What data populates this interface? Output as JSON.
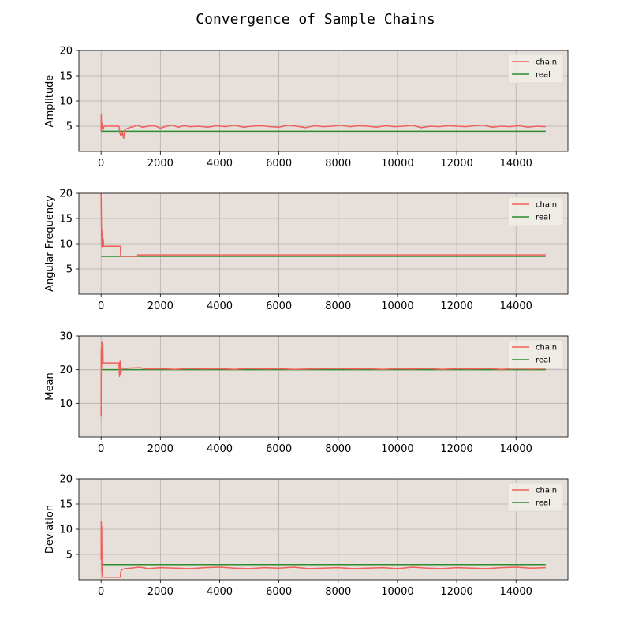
{
  "figure": {
    "title": "Convergence of Sample Chains",
    "background": "#ffffff",
    "axes_background": "#e7e0da",
    "grid_color": "#b0b0b0",
    "chain_color": "#f0605a",
    "real_color": "#2e8b2e"
  },
  "chart_data": [
    {
      "type": "line",
      "title": "",
      "xlabel": "",
      "ylabel": "Amplitude",
      "xlim": [
        -750,
        15750
      ],
      "ylim": [
        0,
        20
      ],
      "xticks": [
        0,
        2000,
        4000,
        6000,
        8000,
        10000,
        12000,
        14000
      ],
      "yticks": [
        5,
        10,
        15,
        20
      ],
      "grid": true,
      "legend": "top-right",
      "series": [
        {
          "name": "chain",
          "x": [
            0,
            5,
            10,
            20,
            30,
            60,
            100,
            600,
            640,
            680,
            720,
            760,
            800,
            900,
            1000,
            1100,
            1200,
            1400,
            1600,
            1800,
            2000,
            2200,
            2400,
            2600,
            2800,
            3000,
            3300,
            3600,
            3900,
            4200,
            4500,
            4800,
            5100,
            5400,
            5700,
            6000,
            6300,
            6600,
            6900,
            7200,
            7500,
            7800,
            8100,
            8400,
            8700,
            9000,
            9300,
            9600,
            9900,
            10200,
            10500,
            10800,
            11100,
            11400,
            11700,
            12000,
            12300,
            12600,
            12900,
            13200,
            13500,
            13800,
            14100,
            14400,
            14700,
            15000
          ],
          "values": [
            4.0,
            7.3,
            6.0,
            4.5,
            5.5,
            4.2,
            5.0,
            5.0,
            3.5,
            3.0,
            3.8,
            2.6,
            4.3,
            4.6,
            4.8,
            4.9,
            5.2,
            4.8,
            5.0,
            5.1,
            4.6,
            5.0,
            5.2,
            4.8,
            5.1,
            4.9,
            5.0,
            4.8,
            5.1,
            4.9,
            5.2,
            4.8,
            5.0,
            5.1,
            4.9,
            4.8,
            5.2,
            5.0,
            4.7,
            5.1,
            4.9,
            5.0,
            5.2,
            4.9,
            5.1,
            5.0,
            4.8,
            5.1,
            4.9,
            5.0,
            5.2,
            4.7,
            5.0,
            4.9,
            5.1,
            5.0,
            4.9,
            5.1,
            5.2,
            4.8,
            5.0,
            4.9,
            5.1,
            4.8,
            5.0,
            4.9
          ]
        },
        {
          "name": "real",
          "x": [
            0,
            15000
          ],
          "values": [
            4.0,
            4.0
          ]
        }
      ]
    },
    {
      "type": "line",
      "title": "",
      "xlabel": "",
      "ylabel": "Angular Frequency",
      "xlim": [
        -750,
        15750
      ],
      "ylim": [
        0,
        20
      ],
      "xticks": [
        0,
        2000,
        4000,
        6000,
        8000,
        10000,
        12000,
        14000
      ],
      "yticks": [
        5,
        10,
        15,
        20
      ],
      "grid": true,
      "legend": "top-right",
      "series": [
        {
          "name": "chain",
          "x": [
            0,
            5,
            15,
            25,
            40,
            55,
            70,
            90,
            100,
            650,
            660,
            1230,
            1240,
            15000
          ],
          "values": [
            20.0,
            17.0,
            12.0,
            9.5,
            12.5,
            9.2,
            11.0,
            9.5,
            9.5,
            9.5,
            7.5,
            7.5,
            7.8,
            7.8
          ]
        },
        {
          "name": "real",
          "x": [
            0,
            15000
          ],
          "values": [
            7.5,
            7.5
          ]
        }
      ]
    },
    {
      "type": "line",
      "title": "",
      "xlabel": "",
      "ylabel": "Mean",
      "xlim": [
        -750,
        15750
      ],
      "ylim": [
        0,
        30
      ],
      "xticks": [
        0,
        2000,
        4000,
        6000,
        8000,
        10000,
        12000,
        14000
      ],
      "yticks": [
        10,
        20,
        30
      ],
      "grid": true,
      "legend": "top-right",
      "series": [
        {
          "name": "chain",
          "x": [
            0,
            5,
            15,
            25,
            40,
            55,
            70,
            90,
            110,
            600,
            620,
            640,
            660,
            700,
            800,
            1000,
            1300,
            1600,
            2000,
            2500,
            3000,
            3500,
            4000,
            4500,
            5000,
            5500,
            6000,
            6500,
            7000,
            7500,
            8000,
            8500,
            9000,
            9500,
            10000,
            10500,
            11000,
            11500,
            12000,
            12500,
            13000,
            13500,
            14000,
            14500,
            15000
          ],
          "values": [
            6.0,
            26.0,
            20.0,
            28.0,
            22.0,
            28.5,
            22.0,
            22.0,
            22.0,
            22.0,
            18.0,
            22.5,
            18.5,
            20.5,
            20.4,
            20.5,
            20.6,
            20.2,
            20.3,
            20.1,
            20.4,
            20.2,
            20.3,
            20.1,
            20.4,
            20.2,
            20.3,
            20.1,
            20.2,
            20.3,
            20.4,
            20.2,
            20.3,
            20.1,
            20.3,
            20.2,
            20.4,
            20.1,
            20.3,
            20.2,
            20.4,
            20.1,
            20.3,
            20.2,
            20.3
          ]
        },
        {
          "name": "real",
          "x": [
            0,
            15000
          ],
          "values": [
            20.0,
            20.0
          ]
        }
      ]
    },
    {
      "type": "line",
      "title": "",
      "xlabel": "",
      "ylabel": "Deviation",
      "xlim": [
        -750,
        15750
      ],
      "ylim": [
        0,
        20
      ],
      "xticks": [
        0,
        2000,
        4000,
        6000,
        8000,
        10000,
        12000,
        14000
      ],
      "yticks": [
        5,
        10,
        15,
        20
      ],
      "grid": true,
      "legend": "top-right",
      "series": [
        {
          "name": "chain",
          "x": [
            0,
            5,
            10,
            20,
            30,
            50,
            100,
            650,
            660,
            700,
            800,
            1000,
            1300,
            1600,
            2000,
            2500,
            3000,
            3500,
            4000,
            4500,
            5000,
            5500,
            6000,
            6500,
            7000,
            7500,
            8000,
            8500,
            9000,
            9500,
            10000,
            10500,
            11000,
            11500,
            12000,
            12500,
            13000,
            13500,
            14000,
            14500,
            15000
          ],
          "values": [
            4.0,
            11.5,
            8.0,
            10.5,
            2.0,
            0.5,
            0.5,
            0.5,
            1.5,
            2.0,
            2.2,
            2.3,
            2.5,
            2.2,
            2.4,
            2.3,
            2.2,
            2.4,
            2.5,
            2.3,
            2.2,
            2.4,
            2.3,
            2.5,
            2.2,
            2.3,
            2.4,
            2.2,
            2.3,
            2.4,
            2.2,
            2.5,
            2.3,
            2.2,
            2.4,
            2.3,
            2.2,
            2.4,
            2.5,
            2.3,
            2.4
          ]
        },
        {
          "name": "real",
          "x": [
            0,
            15000
          ],
          "values": [
            3.0,
            3.0
          ]
        }
      ]
    }
  ]
}
